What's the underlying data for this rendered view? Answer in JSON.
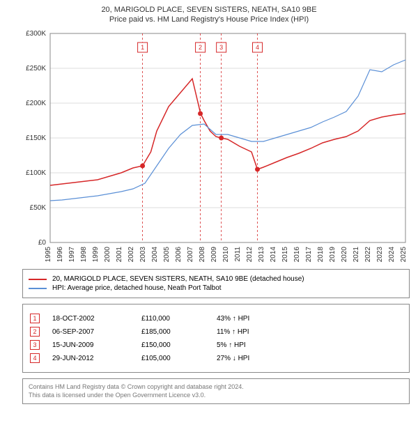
{
  "title_line1": "20, MARIGOLD PLACE, SEVEN SISTERS, NEATH, SA10 9BE",
  "title_line2": "Price paid vs. HM Land Registry's House Price Index (HPI)",
  "chart": {
    "type": "line",
    "background_color": "#ffffff",
    "border_color": "#888888",
    "grid_color": "#dddddd",
    "tick_fontsize": 10,
    "x_years": [
      1995,
      1996,
      1997,
      1998,
      1999,
      2000,
      2001,
      2002,
      2003,
      2004,
      2005,
      2006,
      2007,
      2008,
      2009,
      2010,
      2011,
      2012,
      2013,
      2014,
      2015,
      2016,
      2017,
      2018,
      2019,
      2020,
      2021,
      2022,
      2023,
      2024,
      2025
    ],
    "ylim": [
      0,
      300000
    ],
    "ytick_labels": [
      "£0",
      "£50K",
      "£100K",
      "£150K",
      "£200K",
      "£250K",
      "£300K"
    ],
    "ytick_values": [
      0,
      50000,
      100000,
      150000,
      200000,
      250000,
      300000
    ],
    "series": [
      {
        "name": "20, MARIGOLD PLACE, SEVEN SISTERS, NEATH, SA10 9BE (detached house)",
        "color": "#d62728",
        "line_width": 1.5,
        "x": [
          1995,
          1996,
          1997,
          1998,
          1999,
          2000,
          2001,
          2002,
          2002.8,
          2003.5,
          2004,
          2005,
          2006,
          2007,
          2007.7,
          2008,
          2008.5,
          2009,
          2009.45,
          2010,
          2011,
          2012,
          2012.5,
          2013,
          2014,
          2015,
          2016,
          2017,
          2018,
          2019,
          2020,
          2021,
          2022,
          2023,
          2024,
          2025
        ],
        "y": [
          82000,
          84000,
          86000,
          88000,
          90000,
          95000,
          100000,
          107000,
          110000,
          130000,
          160000,
          195000,
          215000,
          235000,
          185000,
          175000,
          160000,
          152000,
          150000,
          148000,
          138000,
          130000,
          105000,
          108000,
          115000,
          122000,
          128000,
          135000,
          143000,
          148000,
          152000,
          160000,
          175000,
          180000,
          183000,
          185000
        ]
      },
      {
        "name": "HPI: Average price, detached house, Neath Port Talbot",
        "color": "#5a8fd6",
        "line_width": 1.2,
        "x": [
          1995,
          1996,
          1997,
          1998,
          1999,
          2000,
          2001,
          2002,
          2003,
          2004,
          2005,
          2006,
          2007,
          2008,
          2009,
          2010,
          2011,
          2012,
          2013,
          2014,
          2015,
          2016,
          2017,
          2018,
          2019,
          2020,
          2021,
          2022,
          2023,
          2024,
          2025
        ],
        "y": [
          60000,
          61000,
          63000,
          65000,
          67000,
          70000,
          73000,
          77000,
          85000,
          110000,
          135000,
          155000,
          168000,
          170000,
          155000,
          155000,
          150000,
          145000,
          145000,
          150000,
          155000,
          160000,
          165000,
          173000,
          180000,
          188000,
          210000,
          248000,
          245000,
          255000,
          262000
        ]
      }
    ],
    "markers": [
      {
        "num": "1",
        "year": 2002.8,
        "price": 110000,
        "label_y": 280000
      },
      {
        "num": "2",
        "year": 2007.68,
        "price": 185000,
        "label_y": 280000
      },
      {
        "num": "3",
        "year": 2009.45,
        "price": 150000,
        "label_y": 280000
      },
      {
        "num": "4",
        "year": 2012.5,
        "price": 105000,
        "label_y": 280000
      }
    ],
    "marker_line_color": "#d62728",
    "marker_box_border": "#d62728",
    "marker_box_text": "#d62728",
    "marker_box_bg": "#ffffff",
    "marker_dot_fill": "#d62728"
  },
  "legend": {
    "items": [
      {
        "color": "#d62728",
        "label": "20, MARIGOLD PLACE, SEVEN SISTERS, NEATH, SA10 9BE (detached house)"
      },
      {
        "color": "#5a8fd6",
        "label": "HPI: Average price, detached house, Neath Port Talbot"
      }
    ]
  },
  "transactions": [
    {
      "num": "1",
      "date": "18-OCT-2002",
      "price": "£110,000",
      "pct": "43% ↑ HPI"
    },
    {
      "num": "2",
      "date": "06-SEP-2007",
      "price": "£185,000",
      "pct": "11% ↑ HPI"
    },
    {
      "num": "3",
      "date": "15-JUN-2009",
      "price": "£150,000",
      "pct": "5% ↑ HPI"
    },
    {
      "num": "4",
      "date": "29-JUN-2012",
      "price": "£105,000",
      "pct": "27% ↓ HPI"
    }
  ],
  "footer_line1": "Contains HM Land Registry data © Crown copyright and database right 2024.",
  "footer_line2": "This data is licensed under the Open Government Licence v3.0."
}
